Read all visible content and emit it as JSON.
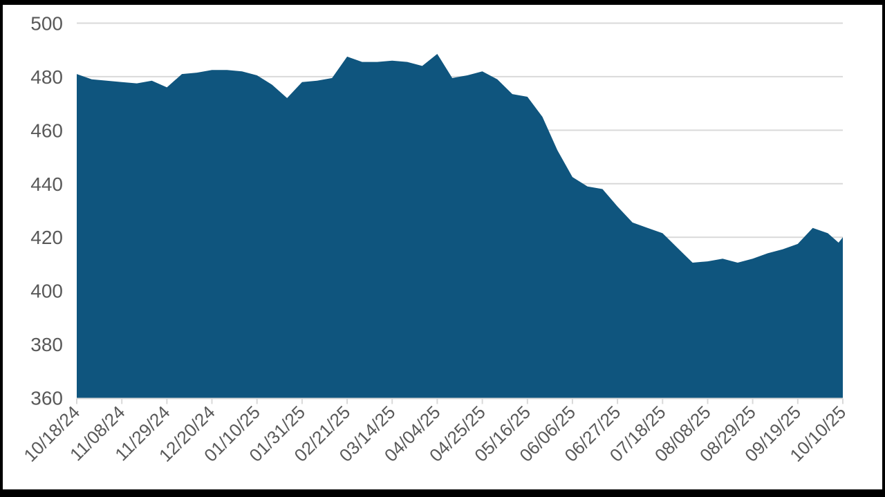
{
  "chart_data": {
    "type": "area",
    "title": "",
    "xlabel": "",
    "ylabel": "",
    "legend": "none",
    "grid": "horizontal",
    "ylim": [
      360,
      500
    ],
    "y_ticks": [
      360,
      380,
      400,
      420,
      440,
      460,
      480,
      500
    ],
    "x_tick_labels": [
      "10/18/24",
      "11/08/24",
      "11/29/24",
      "12/20/24",
      "01/10/25",
      "01/31/25",
      "02/21/25",
      "03/14/25",
      "04/04/25",
      "04/25/25",
      "05/16/25",
      "06/06/25",
      "06/27/25",
      "07/18/25",
      "08/08/25",
      "08/29/25",
      "09/19/25",
      "10/10/25"
    ],
    "points": [
      {
        "date": "10/18/24",
        "value": 481
      },
      {
        "date": "10/25/24",
        "value": 479
      },
      {
        "date": "11/01/24",
        "value": 478.5
      },
      {
        "date": "11/08/24",
        "value": 478
      },
      {
        "date": "11/15/24",
        "value": 477.5
      },
      {
        "date": "11/22/24",
        "value": 478.5
      },
      {
        "date": "11/29/24",
        "value": 476
      },
      {
        "date": "12/06/24",
        "value": 481
      },
      {
        "date": "12/13/24",
        "value": 481.5
      },
      {
        "date": "12/20/24",
        "value": 482.5
      },
      {
        "date": "12/27/24",
        "value": 482.5
      },
      {
        "date": "01/03/25",
        "value": 482
      },
      {
        "date": "01/10/25",
        "value": 480.5
      },
      {
        "date": "01/17/25",
        "value": 477
      },
      {
        "date": "01/24/25",
        "value": 472
      },
      {
        "date": "01/31/25",
        "value": 478
      },
      {
        "date": "02/07/25",
        "value": 478.5
      },
      {
        "date": "02/14/25",
        "value": 479.5
      },
      {
        "date": "02/21/25",
        "value": 487.5
      },
      {
        "date": "02/28/25",
        "value": 485.5
      },
      {
        "date": "03/07/25",
        "value": 485.5
      },
      {
        "date": "03/14/25",
        "value": 486
      },
      {
        "date": "03/21/25",
        "value": 485.5
      },
      {
        "date": "03/28/25",
        "value": 484
      },
      {
        "date": "04/04/25",
        "value": 488.5
      },
      {
        "date": "04/11/25",
        "value": 479.5
      },
      {
        "date": "04/18/25",
        "value": 480.5
      },
      {
        "date": "04/25/25",
        "value": 482
      },
      {
        "date": "05/02/25",
        "value": 479
      },
      {
        "date": "05/09/25",
        "value": 473.5
      },
      {
        "date": "05/16/25",
        "value": 472.5
      },
      {
        "date": "05/23/25",
        "value": 465
      },
      {
        "date": "05/30/25",
        "value": 452.5
      },
      {
        "date": "06/06/25",
        "value": 442.5
      },
      {
        "date": "06/13/25",
        "value": 439
      },
      {
        "date": "06/20/25",
        "value": 438
      },
      {
        "date": "06/27/25",
        "value": 431.5
      },
      {
        "date": "07/04/25",
        "value": 425.5
      },
      {
        "date": "07/11/25",
        "value": 423.5
      },
      {
        "date": "07/18/25",
        "value": 421.5
      },
      {
        "date": "07/25/25",
        "value": 416
      },
      {
        "date": "08/01/25",
        "value": 410.5
      },
      {
        "date": "08/08/25",
        "value": 411
      },
      {
        "date": "08/15/25",
        "value": 412
      },
      {
        "date": "08/22/25",
        "value": 410.5
      },
      {
        "date": "08/29/25",
        "value": 412
      },
      {
        "date": "09/05/25",
        "value": 414
      },
      {
        "date": "09/12/25",
        "value": 415.5
      },
      {
        "date": "09/19/25",
        "value": 417.5
      },
      {
        "date": "09/26/25",
        "value": 423.5
      },
      {
        "date": "10/03/25",
        "value": 421.5
      },
      {
        "date": "10/08/25",
        "value": 418
      },
      {
        "date": "10/10/25",
        "value": 420
      }
    ]
  },
  "style": {
    "area_color": "#0F557E",
    "gridline_color": "#D9D9D9",
    "axis_line_color": "#D9D9D9",
    "tick_color": "#D9D9D9",
    "label_color": "#595959",
    "plot_background": "#FFFFFF",
    "frame_color": "#000000"
  }
}
